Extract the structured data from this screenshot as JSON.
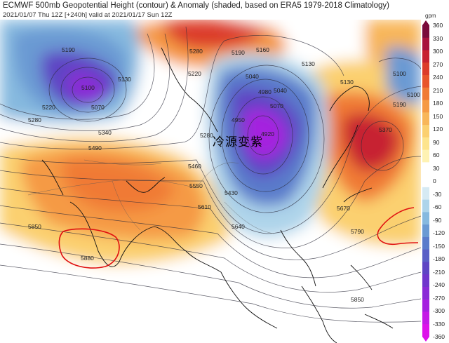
{
  "header": {
    "title": "ECMWF 500mb Geopotential Height (contour) & Anomaly (shaded, based on ERA5 1979-2018 Climatology)",
    "subtitle": "2021/01/07 Thu 12Z [+240h] valid at 2021/01/17 Sun 12Z"
  },
  "annotation": {
    "text": "冷源变紫"
  },
  "colorbar": {
    "unit": "gpm",
    "labels": [
      "360",
      "330",
      "300",
      "270",
      "240",
      "210",
      "180",
      "150",
      "120",
      "90",
      "60",
      "30",
      "0",
      "-30",
      "-60",
      "-90",
      "-120",
      "-150",
      "-180",
      "-210",
      "-240",
      "-270",
      "-300",
      "-330",
      "-360"
    ],
    "colors": [
      "#7a0a3a",
      "#a8123c",
      "#c72230",
      "#dc3b2a",
      "#e8552b",
      "#f07a35",
      "#f59a45",
      "#f8b659",
      "#fbd070",
      "#fde48c",
      "#fef2b3",
      "#ffffff",
      "#ffffff",
      "#d6eaf3",
      "#aed4ea",
      "#86b9df",
      "#6a9ad3",
      "#5a7ccb",
      "#5a5fc6",
      "#5e45c4",
      "#7036cc",
      "#8a2ad6",
      "#a521df",
      "#c41ae6",
      "#dd12ea"
    ]
  },
  "contour_labels": [
    {
      "text": "5190"
    },
    {
      "text": "5130"
    },
    {
      "text": "5040"
    },
    {
      "text": "5100"
    },
    {
      "text": "5070"
    },
    {
      "text": "5220"
    },
    {
      "text": "5280"
    },
    {
      "text": "5340"
    },
    {
      "text": "5490"
    },
    {
      "text": "5280"
    },
    {
      "text": "5220"
    },
    {
      "text": "5190"
    },
    {
      "text": "5160"
    },
    {
      "text": "5130"
    },
    {
      "text": "5040"
    },
    {
      "text": "4980"
    },
    {
      "text": "4950"
    },
    {
      "text": "4920"
    },
    {
      "text": "5070"
    },
    {
      "text": "5130"
    },
    {
      "text": "5100"
    },
    {
      "text": "5190"
    },
    {
      "text": "5370"
    },
    {
      "text": "5460"
    },
    {
      "text": "5550"
    },
    {
      "text": "5610"
    },
    {
      "text": "5430"
    },
    {
      "text": "5640"
    },
    {
      "text": "5670"
    },
    {
      "text": "5790"
    },
    {
      "text": "5850"
    },
    {
      "text": "5880"
    },
    {
      "text": "5850"
    },
    {
      "text": "5100"
    },
    {
      "text": "5280"
    }
  ]
}
